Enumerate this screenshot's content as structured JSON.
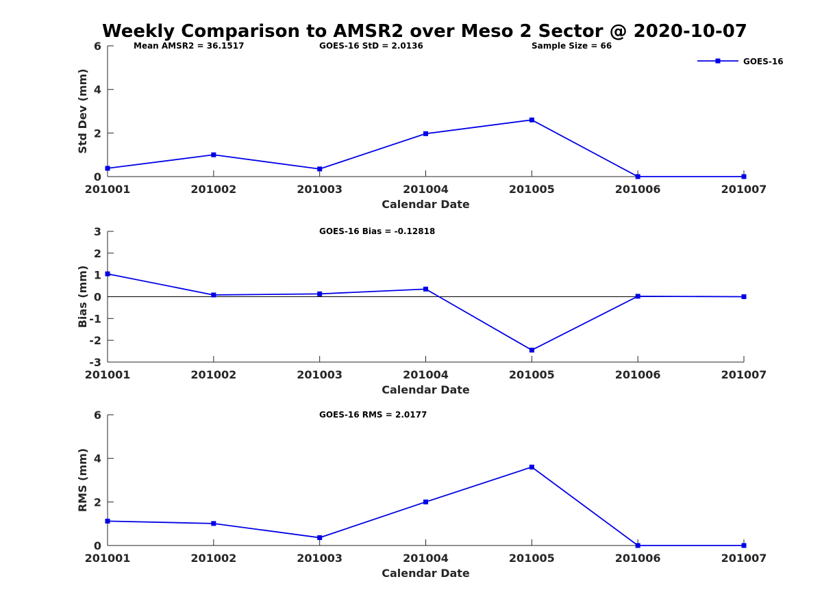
{
  "title": "Weekly Comparison to AMSR2 over Meso 2 Sector @ 2020-10-07",
  "colors": {
    "series": "#0000e6",
    "axis": "#262626"
  },
  "chart_data": [
    {
      "type": "line",
      "categories": [
        "201001",
        "201002",
        "201003",
        "201004",
        "201005",
        "201006",
        "201007"
      ],
      "series": [
        {
          "name": "GOES-16",
          "values": [
            0.38,
            1.0,
            0.35,
            1.97,
            2.6,
            0.0,
            0.0
          ]
        }
      ],
      "xlabel": "Calendar Date",
      "ylabel": "Std Dev (mm)",
      "ylim": [
        0,
        6
      ],
      "yticks": [
        "0",
        "2",
        "4",
        "6"
      ],
      "annotations": [
        "Mean AMSR2 = 36.1517",
        "GOES-16 StD = 2.0136",
        "Sample Size = 66"
      ],
      "legend": {
        "label": "GOES-16",
        "position": "top-right"
      },
      "zero_line": false
    },
    {
      "type": "line",
      "categories": [
        "201001",
        "201002",
        "201003",
        "201004",
        "201005",
        "201006",
        "201007"
      ],
      "series": [
        {
          "name": "GOES-16",
          "values": [
            1.05,
            0.08,
            0.13,
            0.35,
            -2.45,
            0.02,
            0.0
          ]
        }
      ],
      "xlabel": "Calendar Date",
      "ylabel": "Bias (mm)",
      "ylim": [
        -3,
        3
      ],
      "yticks": [
        "-3",
        "-2",
        "-1",
        "0",
        "1",
        "2",
        "3"
      ],
      "annotations": [
        "GOES-16 Bias  = -0.12818"
      ],
      "zero_line": true
    },
    {
      "type": "line",
      "categories": [
        "201001",
        "201002",
        "201003",
        "201004",
        "201005",
        "201006",
        "201007"
      ],
      "series": [
        {
          "name": "GOES-16",
          "values": [
            1.12,
            1.01,
            0.36,
            2.0,
            3.6,
            0.0,
            0.0
          ]
        }
      ],
      "xlabel": "Calendar Date",
      "ylabel": "RMS (mm)",
      "ylim": [
        0,
        6
      ],
      "yticks": [
        "0",
        "2",
        "4",
        "6"
      ],
      "annotations": [
        "GOES-16 RMS = 2.0177"
      ],
      "zero_line": false
    }
  ]
}
